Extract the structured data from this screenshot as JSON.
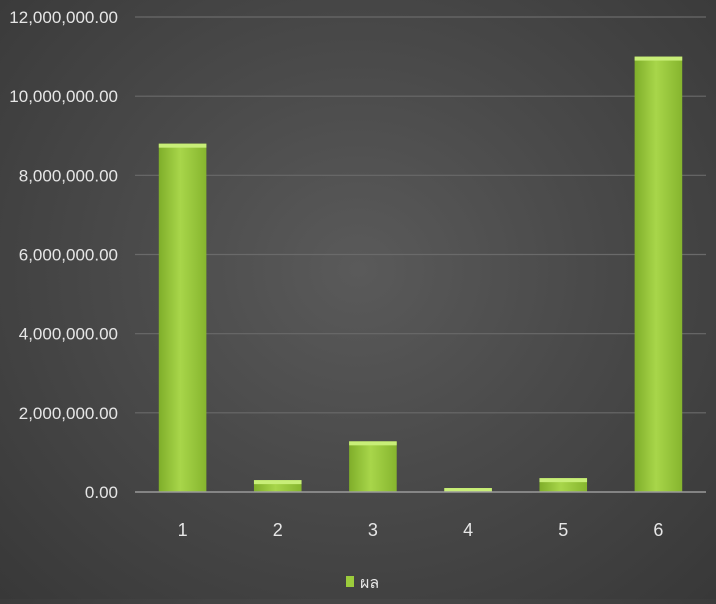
{
  "chart_data": {
    "type": "bar",
    "categories": [
      "1",
      "2",
      "3",
      "4",
      "5",
      "6"
    ],
    "series": [
      {
        "name": "ผล",
        "values": [
          8800000,
          300000,
          1280000,
          100000,
          350000,
          11000000
        ]
      }
    ],
    "y_ticks": [
      "0.00",
      "2,000,000.00",
      "4,000,000.00",
      "6,000,000.00",
      "8,000,000.00",
      "10,000,000.00",
      "12,000,000.00"
    ],
    "ylim": [
      0,
      12000000
    ],
    "grid": true,
    "legend_position": "bottom",
    "bar_color": "#9ccc3c",
    "background_color": "#4a4a4a",
    "gridline_color": "#6a6a6a",
    "text_color": "#e6e6e6"
  }
}
